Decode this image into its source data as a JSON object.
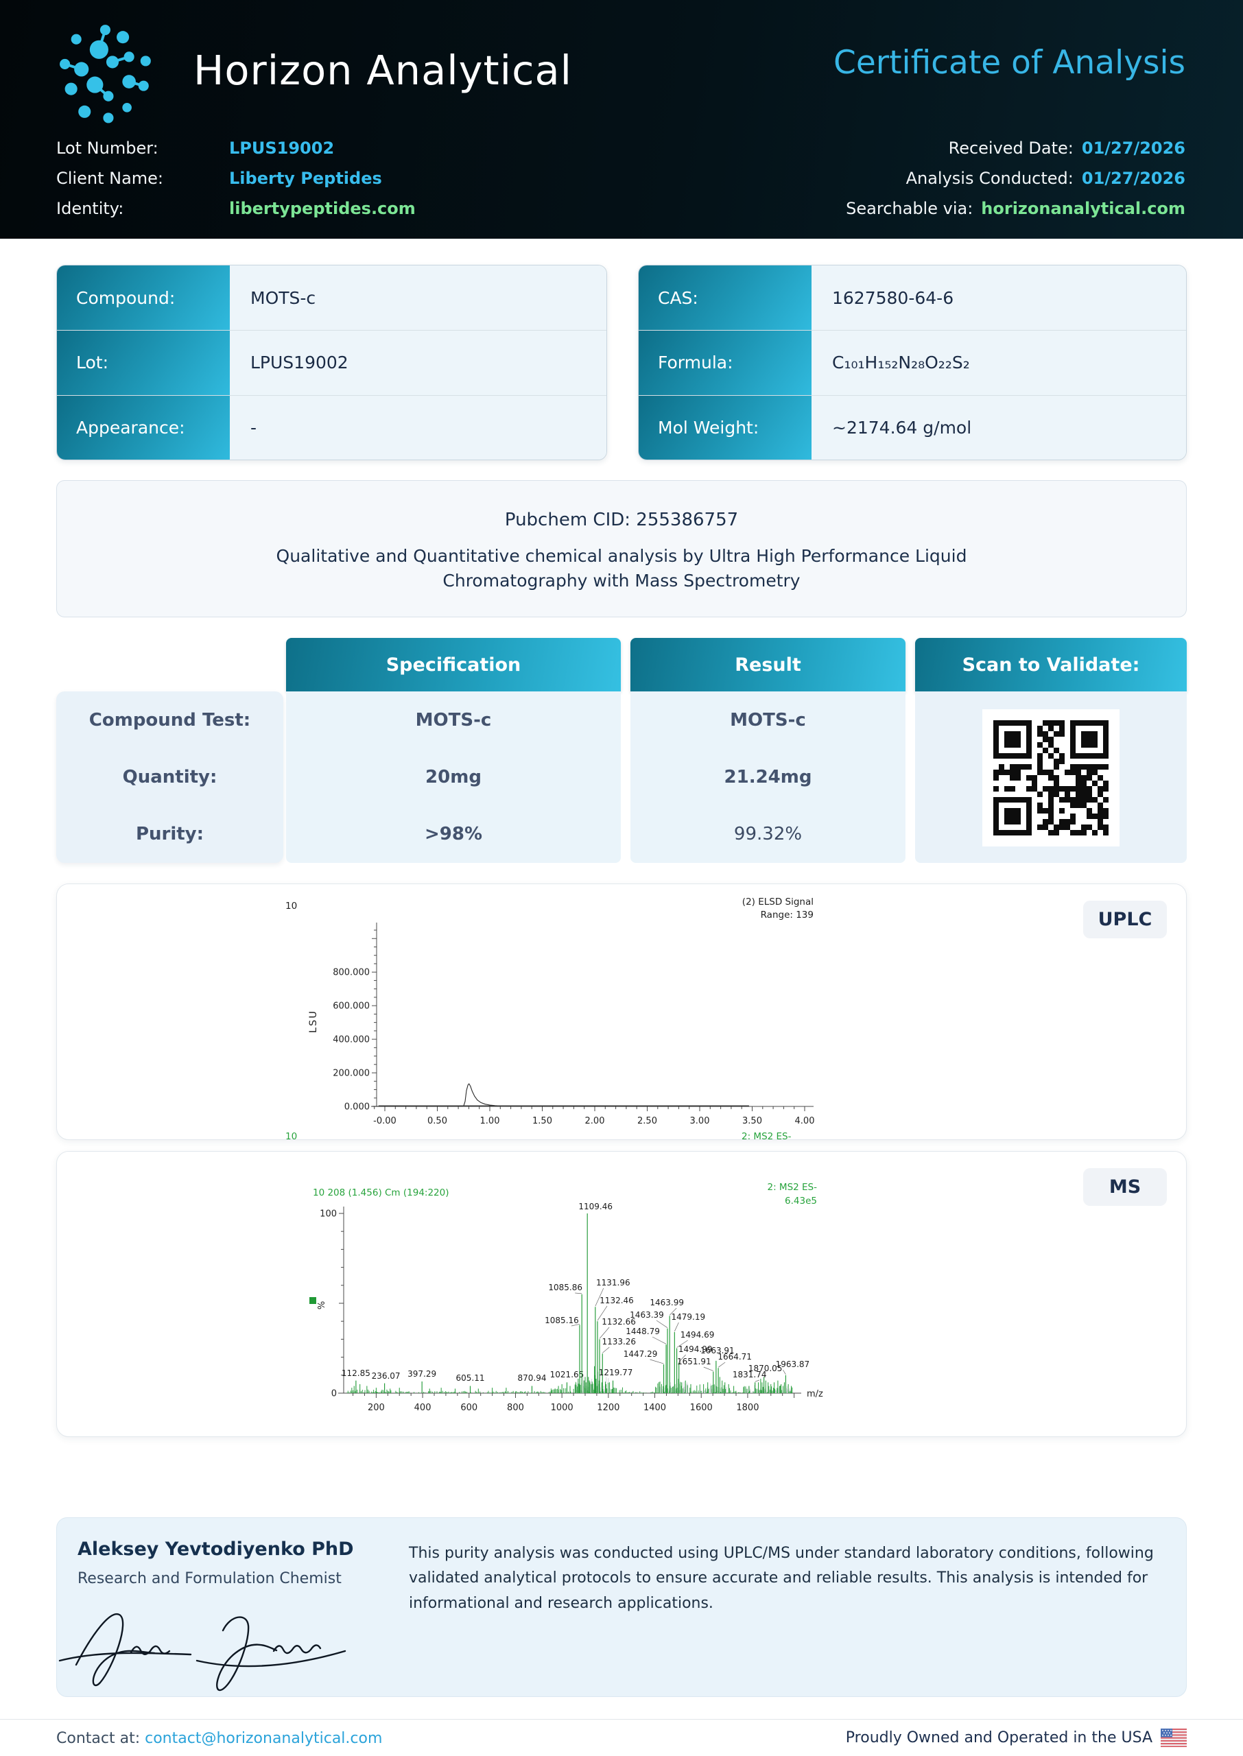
{
  "colors": {
    "accent_cyan": "#38bdee",
    "accent_green": "#7ce595",
    "teal_gradient_dark": "#0d6e88",
    "teal_gradient_light": "#30bade",
    "navy_text": "#1d2f4e",
    "chart_green": "#219a36",
    "header_background": "#041117"
  },
  "header": {
    "brand": "Horizon Analytical",
    "title": "Certificate of Analysis",
    "meta_left": [
      {
        "label": "Lot Number:",
        "value": "LPUS19002"
      },
      {
        "label": "Client Name:",
        "value": "Liberty Peptides"
      },
      {
        "label": "Identity:",
        "value": "libertypeptides.com"
      }
    ],
    "meta_right": [
      {
        "label": "Received Date:",
        "value": "01/27/2026"
      },
      {
        "label": "Analysis Conducted:",
        "value": "01/27/2026"
      },
      {
        "label": "Searchable via:",
        "value": "horizonanalytical.com"
      }
    ]
  },
  "compound_table": {
    "rows": [
      {
        "label": "Compound:",
        "value": "MOTS-c"
      },
      {
        "label": "Lot:",
        "value": "LPUS19002"
      },
      {
        "label": "Appearance:",
        "value": "-"
      }
    ]
  },
  "chem_table": {
    "rows": [
      {
        "label": "CAS:",
        "value": "1627580-64-6"
      },
      {
        "label": "Formula:",
        "value": "C₁₀₁H₁₅₂N₂₈O₂₂S₂"
      },
      {
        "label": "Mol Weight:",
        "value": "~2174.64 g/mol"
      }
    ]
  },
  "pubchem": {
    "cid_line": "Pubchem CID: 255386757",
    "description": "Qualitative and Quantitative chemical analysis by Ultra High Performance Liquid Chromatography with Mass Spectrometry"
  },
  "spec_table": {
    "headers": [
      "Specification",
      "Result",
      "Scan to Validate:"
    ],
    "rows": [
      {
        "label": "Compound Test:",
        "spec": "MOTS-c",
        "result": "MOTS-c"
      },
      {
        "label": "Quantity:",
        "spec": "20mg",
        "result": "21.24mg"
      },
      {
        "label": "Purity:",
        "spec": ">98%",
        "result": "99.32%"
      }
    ]
  },
  "uplc": {
    "badge": "UPLC"
  },
  "ms": {
    "badge": "MS"
  },
  "chart_data": [
    {
      "type": "line",
      "instrument": "UPLC",
      "top_left_label": "10",
      "legend": [
        "(2) ELSD Signal",
        "Range: 139"
      ],
      "ylabel": "LSU",
      "ytick_labels": [
        "0.000",
        "200.000",
        "400.000",
        "600.000",
        "800.000"
      ],
      "ytick_values": [
        0,
        200000,
        400000,
        600000,
        800000
      ],
      "ylim": [
        0,
        1050000
      ],
      "xtick_labels": [
        "-0.00",
        "0.50",
        "1.00",
        "1.50",
        "2.00",
        "2.50",
        "3.00",
        "3.50",
        "4.00"
      ],
      "xlim": [
        -0.15,
        4.1
      ],
      "bottom_left": "10",
      "bottom_right": "2: MS2 ES-",
      "peak_retention_time": 0.8,
      "peak_height_lsu": 135000,
      "points": [
        [
          -0.12,
          300
        ],
        [
          0.0,
          350
        ],
        [
          0.3,
          300
        ],
        [
          0.6,
          350
        ],
        [
          0.72,
          450
        ],
        [
          0.75,
          1500
        ],
        [
          0.765,
          30000
        ],
        [
          0.778,
          95000
        ],
        [
          0.792,
          128000
        ],
        [
          0.802,
          135000
        ],
        [
          0.815,
          121000
        ],
        [
          0.833,
          90000
        ],
        [
          0.855,
          61000
        ],
        [
          0.882,
          38000
        ],
        [
          0.915,
          23000
        ],
        [
          0.955,
          13500
        ],
        [
          1.0,
          8200
        ],
        [
          1.05,
          4800
        ],
        [
          1.1,
          2800
        ],
        [
          1.16,
          1600
        ],
        [
          1.23,
          900
        ],
        [
          1.33,
          550
        ],
        [
          1.5,
          420
        ],
        [
          2.0,
          350
        ],
        [
          2.5,
          350
        ],
        [
          3.0,
          320
        ],
        [
          3.47,
          280
        ]
      ]
    },
    {
      "type": "bar",
      "instrument": "MS",
      "header_left": "10 208 (1.456) Cm (194:220)",
      "header_right": [
        "2: MS2 ES-",
        "6.43e5"
      ],
      "xlabel": "m/z",
      "ylabel": "%",
      "xlim": [
        60,
        2010
      ],
      "ylim": [
        0,
        100
      ],
      "xticks": [
        200,
        400,
        600,
        800,
        1000,
        1200,
        1400,
        1600,
        1800
      ],
      "peaks": [
        {
          "mz": 112.85,
          "pct": 7,
          "label": "112.85",
          "bx": 0,
          "lx": 0,
          "ly": 327,
          "leader": false
        },
        {
          "mz": 236.07,
          "pct": 5.5,
          "label": "236.07",
          "bx": 0,
          "lx": 2,
          "ly": 331,
          "leader": false
        },
        {
          "mz": 397.29,
          "pct": 6.5,
          "label": "397.29",
          "bx": 0,
          "lx": 0,
          "ly": 328,
          "leader": false
        },
        {
          "mz": 605.11,
          "pct": 4,
          "label": "605.11",
          "bx": 0,
          "lx": 0,
          "ly": 334,
          "leader": false
        },
        {
          "mz": 870.94,
          "pct": 4,
          "label": "870.94",
          "bx": 0,
          "lx": 0,
          "ly": 334,
          "leader": false
        },
        {
          "mz": 1021.65,
          "pct": 6,
          "label": "1021.65",
          "bx": 0,
          "lx": 0,
          "ly": 329,
          "leader": false
        },
        {
          "mz": 1085.16,
          "pct": 38,
          "label": "1085.16",
          "bx": -3,
          "lx": -26,
          "ly": 250,
          "leader": true
        },
        {
          "mz": 1085.86,
          "pct": 55,
          "label": "1085.86",
          "bx": 0,
          "lx": -24,
          "ly": 202,
          "leader": true
        },
        {
          "mz": 1109.46,
          "pct": 100,
          "label": "1109.46",
          "bx": 0,
          "lx": 12,
          "ly": 84,
          "leader": false
        },
        {
          "mz": 1131.96,
          "pct": 48,
          "label": "1131.96",
          "bx": 4,
          "lx": 26,
          "ly": 195,
          "leader": true
        },
        {
          "mz": 1132.46,
          "pct": 40,
          "label": "1132.46",
          "bx": 7,
          "lx": 28,
          "ly": 221,
          "leader": true
        },
        {
          "mz": 1132.66,
          "pct": 30,
          "label": "1132.66",
          "bx": 10,
          "lx": 28,
          "ly": 252,
          "leader": true
        },
        {
          "mz": 1133.26,
          "pct": 22,
          "label": "1133.26",
          "bx": 14,
          "lx": 24,
          "ly": 281,
          "leader": true
        },
        {
          "mz": 1219.77,
          "pct": 7,
          "label": "1219.77",
          "bx": 0,
          "lx": 4,
          "ly": 326,
          "leader": false
        },
        {
          "mz": 1447.29,
          "pct": 16,
          "label": "1447.29",
          "bx": -3,
          "lx": -34,
          "ly": 299,
          "leader": true
        },
        {
          "mz": 1448.79,
          "pct": 27,
          "label": "1448.79",
          "bx": 0,
          "lx": -34,
          "ly": 266,
          "leader": true
        },
        {
          "mz": 1463.39,
          "pct": 36,
          "label": "1463.39",
          "bx": -3,
          "lx": -30,
          "ly": 242,
          "leader": true
        },
        {
          "mz": 1463.99,
          "pct": 43,
          "label": "1463.99",
          "bx": 0,
          "lx": -4,
          "ly": 224,
          "leader": true
        },
        {
          "mz": 1479.19,
          "pct": 34,
          "label": "1479.19",
          "bx": 2,
          "lx": 20,
          "ly": 245,
          "leader": true
        },
        {
          "mz": 1494.69,
          "pct": 25,
          "label": "1494.69",
          "bx": 0,
          "lx": 30,
          "ly": 271,
          "leader": true
        },
        {
          "mz": 1494.99,
          "pct": 17,
          "label": "1494.99",
          "bx": 3,
          "lx": 24,
          "ly": 292,
          "leader": true
        },
        {
          "mz": 1651.91,
          "pct": 12,
          "label": "1651.91",
          "bx": 0,
          "lx": -28,
          "ly": 310,
          "leader": true
        },
        {
          "mz": 1663.91,
          "pct": 18,
          "label": "1663.91",
          "bx": 0,
          "lx": 2,
          "ly": 294,
          "leader": false
        },
        {
          "mz": 1664.71,
          "pct": 14,
          "label": "1664.71",
          "bx": 3,
          "lx": 24,
          "ly": 303,
          "leader": true
        },
        {
          "mz": 1831.74,
          "pct": 6,
          "label": "1831.74",
          "bx": 0,
          "lx": -8,
          "ly": 329,
          "leader": true
        },
        {
          "mz": 1870.05,
          "pct": 9,
          "label": "1870.05",
          "bx": 0,
          "lx": 2,
          "ly": 320,
          "leader": false
        },
        {
          "mz": 1963.87,
          "pct": 10,
          "label": "1963.87",
          "bx": 0,
          "lx": 10,
          "ly": 314,
          "leader": true
        }
      ],
      "minor_peaks": [
        [
          95,
          3
        ],
        [
          105,
          4
        ],
        [
          130,
          5
        ],
        [
          160,
          4
        ],
        [
          200,
          3
        ],
        [
          260,
          2.5
        ],
        [
          300,
          3
        ],
        [
          430,
          2.5
        ],
        [
          480,
          3
        ],
        [
          540,
          2.5
        ],
        [
          640,
          2.5
        ],
        [
          700,
          3
        ],
        [
          760,
          3
        ],
        [
          985,
          4
        ],
        [
          1000,
          5
        ],
        [
          1035,
          4
        ],
        [
          1060,
          6
        ],
        [
          1070,
          8
        ],
        [
          1075,
          5
        ],
        [
          1095,
          7
        ],
        [
          1100,
          9
        ],
        [
          1104,
          6
        ],
        [
          1114,
          9
        ],
        [
          1118,
          7
        ],
        [
          1120,
          6
        ],
        [
          1126,
          5
        ],
        [
          1140,
          15
        ],
        [
          1142,
          10
        ],
        [
          1147,
          8
        ],
        [
          1160,
          7
        ],
        [
          1172,
          6
        ],
        [
          1190,
          5
        ],
        [
          1205,
          6
        ],
        [
          1502,
          8
        ],
        [
          1516,
          6
        ],
        [
          1532,
          7
        ],
        [
          1555,
          5
        ],
        [
          1610,
          5
        ],
        [
          1628,
          6
        ],
        [
          1680,
          9
        ],
        [
          1690,
          7
        ],
        [
          1702,
          6
        ],
        [
          1718,
          5
        ],
        [
          1740,
          4
        ],
        [
          1806,
          4
        ],
        [
          1846,
          6
        ],
        [
          1856,
          8
        ],
        [
          1862,
          6
        ],
        [
          1878,
          7
        ],
        [
          1888,
          6
        ],
        [
          1900,
          5
        ],
        [
          1914,
          6
        ],
        [
          1930,
          7
        ],
        [
          1944,
          5
        ],
        [
          1958,
          6
        ],
        [
          1975,
          5
        ],
        [
          1988,
          4
        ]
      ]
    }
  ],
  "signature": {
    "name": "Aleksey Yevtodiyenko PhD",
    "role": "Research and Formulation Chemist"
  },
  "disclaimer": "This purity analysis was conducted using UPLC/MS under standard laboratory conditions, following validated analytical protocols to ensure accurate and reliable results. This analysis is intended for informational and research applications.",
  "footer": {
    "contact_label": "Contact at: ",
    "contact_email": "contact@horizonanalytical.com",
    "right_text": "Proudly Owned and Operated in the USA"
  }
}
